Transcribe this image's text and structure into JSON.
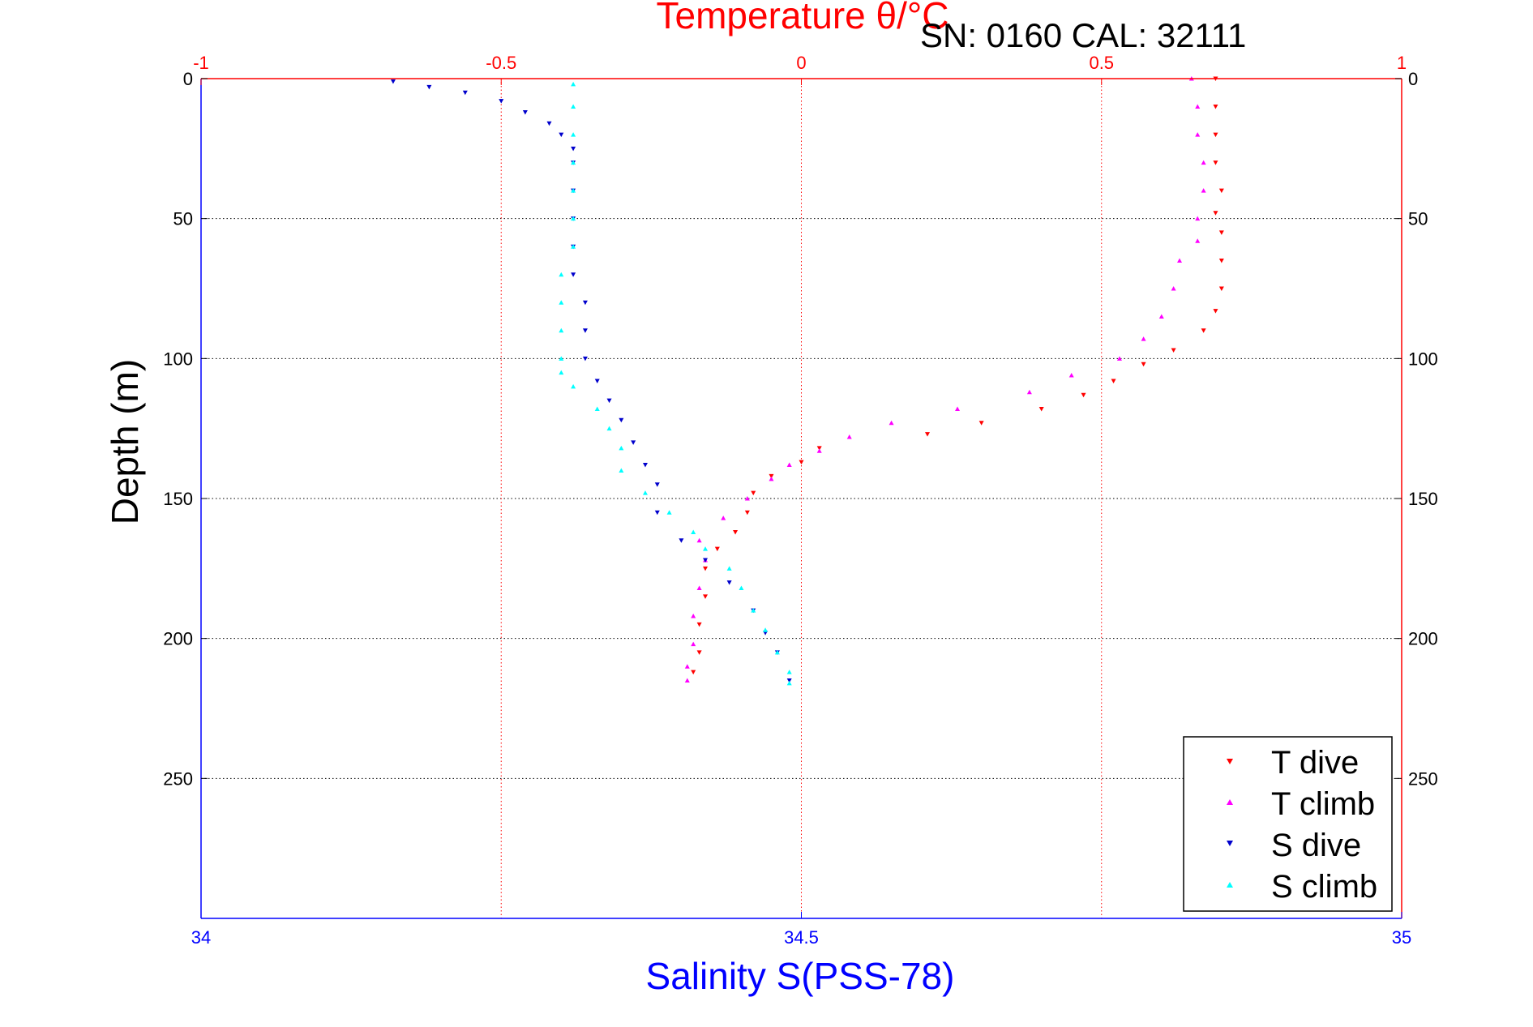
{
  "chart_data": {
    "type": "scatter",
    "title": "Temperature θ/°C",
    "subtitle": "SN: 0160  CAL: 32111",
    "ylabel": "Depth (m)",
    "xlabel": "Salinity S(PSS-78)",
    "x_top": {
      "label": "Temperature θ/°C",
      "range": [
        -1,
        1
      ],
      "ticks": [
        -1,
        -0.5,
        0,
        0.5,
        1
      ],
      "tick_labels": [
        "-1",
        "-0.5",
        "0",
        "0.5",
        "1"
      ],
      "color": "#ff0000"
    },
    "x_bottom": {
      "label": "Salinity S(PSS-78)",
      "range": [
        34,
        35
      ],
      "ticks": [
        34,
        34.5,
        35
      ],
      "tick_labels": [
        "34",
        "34.5",
        "35"
      ],
      "color": "#0000ff"
    },
    "y": {
      "range": [
        0,
        300
      ],
      "reversed": true,
      "ticks": [
        0,
        50,
        100,
        150,
        200,
        250
      ],
      "tick_labels": [
        "0",
        "50",
        "100",
        "150",
        "200",
        "250"
      ]
    },
    "grid": true,
    "legend_position": "bottom-right",
    "series": [
      {
        "name": "T dive",
        "axis": "temperature",
        "color": "#ff0000",
        "marker": "triangle-down",
        "points": [
          [
            0.69,
            0
          ],
          [
            0.69,
            10
          ],
          [
            0.69,
            20
          ],
          [
            0.69,
            30
          ],
          [
            0.7,
            40
          ],
          [
            0.69,
            48
          ],
          [
            0.7,
            55
          ],
          [
            0.7,
            65
          ],
          [
            0.7,
            75
          ],
          [
            0.69,
            83
          ],
          [
            0.67,
            90
          ],
          [
            0.62,
            97
          ],
          [
            0.57,
            102
          ],
          [
            0.52,
            108
          ],
          [
            0.47,
            113
          ],
          [
            0.4,
            118
          ],
          [
            0.3,
            123
          ],
          [
            0.21,
            127
          ],
          [
            0.03,
            132
          ],
          [
            0.0,
            137
          ],
          [
            -0.05,
            142
          ],
          [
            -0.08,
            148
          ],
          [
            -0.09,
            155
          ],
          [
            -0.11,
            162
          ],
          [
            -0.14,
            168
          ],
          [
            -0.16,
            175
          ],
          [
            -0.16,
            185
          ],
          [
            -0.17,
            195
          ],
          [
            -0.17,
            205
          ],
          [
            -0.18,
            212
          ]
        ]
      },
      {
        "name": "T climb",
        "axis": "temperature",
        "color": "#ff00ff",
        "marker": "triangle-up",
        "points": [
          [
            0.65,
            0
          ],
          [
            0.66,
            10
          ],
          [
            0.66,
            20
          ],
          [
            0.67,
            30
          ],
          [
            0.67,
            40
          ],
          [
            0.66,
            50
          ],
          [
            0.66,
            58
          ],
          [
            0.63,
            65
          ],
          [
            0.62,
            75
          ],
          [
            0.6,
            85
          ],
          [
            0.57,
            93
          ],
          [
            0.53,
            100
          ],
          [
            0.45,
            106
          ],
          [
            0.38,
            112
          ],
          [
            0.26,
            118
          ],
          [
            0.15,
            123
          ],
          [
            0.08,
            128
          ],
          [
            0.03,
            133
          ],
          [
            -0.02,
            138
          ],
          [
            -0.05,
            143
          ],
          [
            -0.09,
            150
          ],
          [
            -0.13,
            157
          ],
          [
            -0.17,
            165
          ],
          [
            -0.16,
            172
          ],
          [
            -0.17,
            182
          ],
          [
            -0.18,
            192
          ],
          [
            -0.18,
            202
          ],
          [
            -0.19,
            210
          ],
          [
            -0.19,
            215
          ]
        ]
      },
      {
        "name": "S dive",
        "axis": "salinity",
        "color": "#0000cc",
        "marker": "triangle-down",
        "points": [
          [
            34.16,
            1
          ],
          [
            34.19,
            3
          ],
          [
            34.22,
            5
          ],
          [
            34.25,
            8
          ],
          [
            34.27,
            12
          ],
          [
            34.29,
            16
          ],
          [
            34.3,
            20
          ],
          [
            34.31,
            25
          ],
          [
            34.31,
            30
          ],
          [
            34.31,
            40
          ],
          [
            34.31,
            50
          ],
          [
            34.31,
            60
          ],
          [
            34.31,
            70
          ],
          [
            34.32,
            80
          ],
          [
            34.32,
            90
          ],
          [
            34.32,
            100
          ],
          [
            34.33,
            108
          ],
          [
            34.34,
            115
          ],
          [
            34.35,
            122
          ],
          [
            34.36,
            130
          ],
          [
            34.37,
            138
          ],
          [
            34.38,
            145
          ],
          [
            34.38,
            155
          ],
          [
            34.4,
            165
          ],
          [
            34.42,
            172
          ],
          [
            34.44,
            180
          ],
          [
            34.46,
            190
          ],
          [
            34.47,
            198
          ],
          [
            34.48,
            205
          ],
          [
            34.49,
            215
          ]
        ]
      },
      {
        "name": "S climb",
        "axis": "salinity",
        "color": "#00ffff",
        "marker": "triangle-up",
        "points": [
          [
            34.31,
            2
          ],
          [
            34.31,
            10
          ],
          [
            34.31,
            20
          ],
          [
            34.31,
            30
          ],
          [
            34.31,
            40
          ],
          [
            34.31,
            50
          ],
          [
            34.31,
            60
          ],
          [
            34.3,
            70
          ],
          [
            34.3,
            80
          ],
          [
            34.3,
            90
          ],
          [
            34.3,
            100
          ],
          [
            34.3,
            105
          ],
          [
            34.31,
            110
          ],
          [
            34.33,
            118
          ],
          [
            34.34,
            125
          ],
          [
            34.35,
            132
          ],
          [
            34.35,
            140
          ],
          [
            34.37,
            148
          ],
          [
            34.39,
            155
          ],
          [
            34.41,
            162
          ],
          [
            34.42,
            168
          ],
          [
            34.44,
            175
          ],
          [
            34.45,
            182
          ],
          [
            34.46,
            190
          ],
          [
            34.47,
            197
          ],
          [
            34.48,
            205
          ],
          [
            34.49,
            212
          ],
          [
            34.49,
            216
          ]
        ]
      }
    ]
  }
}
